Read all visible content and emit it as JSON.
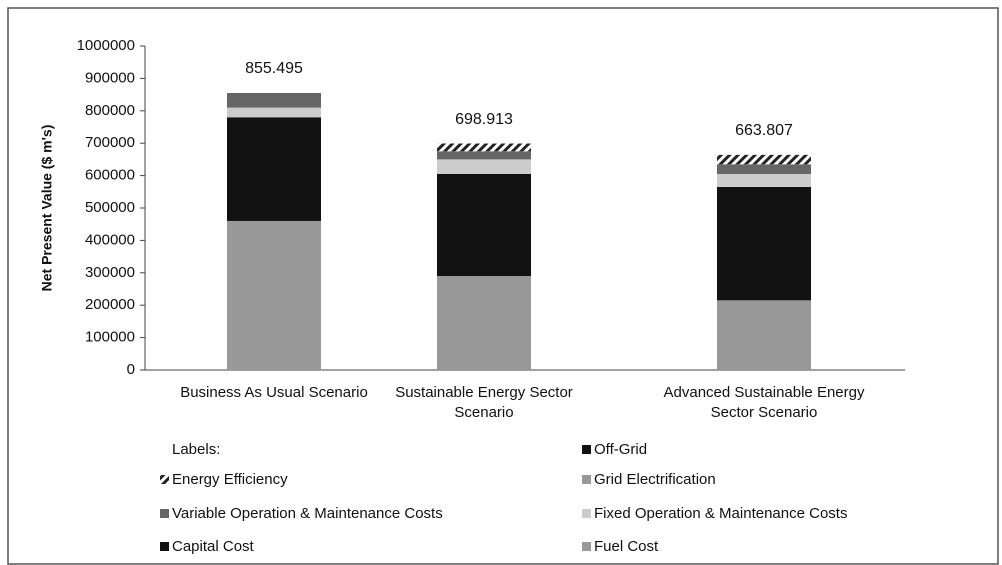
{
  "chart_data": {
    "type": "stacked_bar",
    "y_axis_label": "Net Present Value ($ m's)",
    "legend_title": "Labels:",
    "categories": [
      "Business As Usual Scenario",
      "Sustainable Energy Sector Scenario",
      "Advanced Sustainable Energy Sector Scenario"
    ],
    "totals": [
      855495,
      698913,
      663807
    ],
    "value_labels": [
      "855.495",
      "698.913",
      "663.807"
    ],
    "series": [
      {
        "name": "Off-Grid",
        "color": "#111111",
        "values": [
          0,
          0,
          0
        ]
      },
      {
        "name": "Energy Efficiency",
        "color": "#222222",
        "pattern": "hatch",
        "values": [
          0,
          24000,
          29000
        ]
      },
      {
        "name": "Grid Electrification",
        "color": "#999999",
        "values": [
          0,
          0,
          0
        ]
      },
      {
        "name": "Variable Operation & Maintenance Costs",
        "color": "#666666",
        "values": [
          45000,
          25000,
          30000
        ]
      },
      {
        "name": "Fixed Operation & Maintenance Costs",
        "color": "#cccccc",
        "values": [
          30000,
          45000,
          40000
        ]
      },
      {
        "name": "Capital Cost",
        "color": "#111111",
        "values": [
          320000,
          315000,
          350000
        ]
      },
      {
        "name": "Fuel Cost",
        "color": "#999999",
        "values": [
          460000,
          290000,
          215000
        ]
      }
    ],
    "ylim": [
      0,
      1000000
    ],
    "yticks": [
      0,
      100000,
      200000,
      300000,
      400000,
      500000,
      600000,
      700000,
      800000,
      900000,
      1000000
    ]
  }
}
